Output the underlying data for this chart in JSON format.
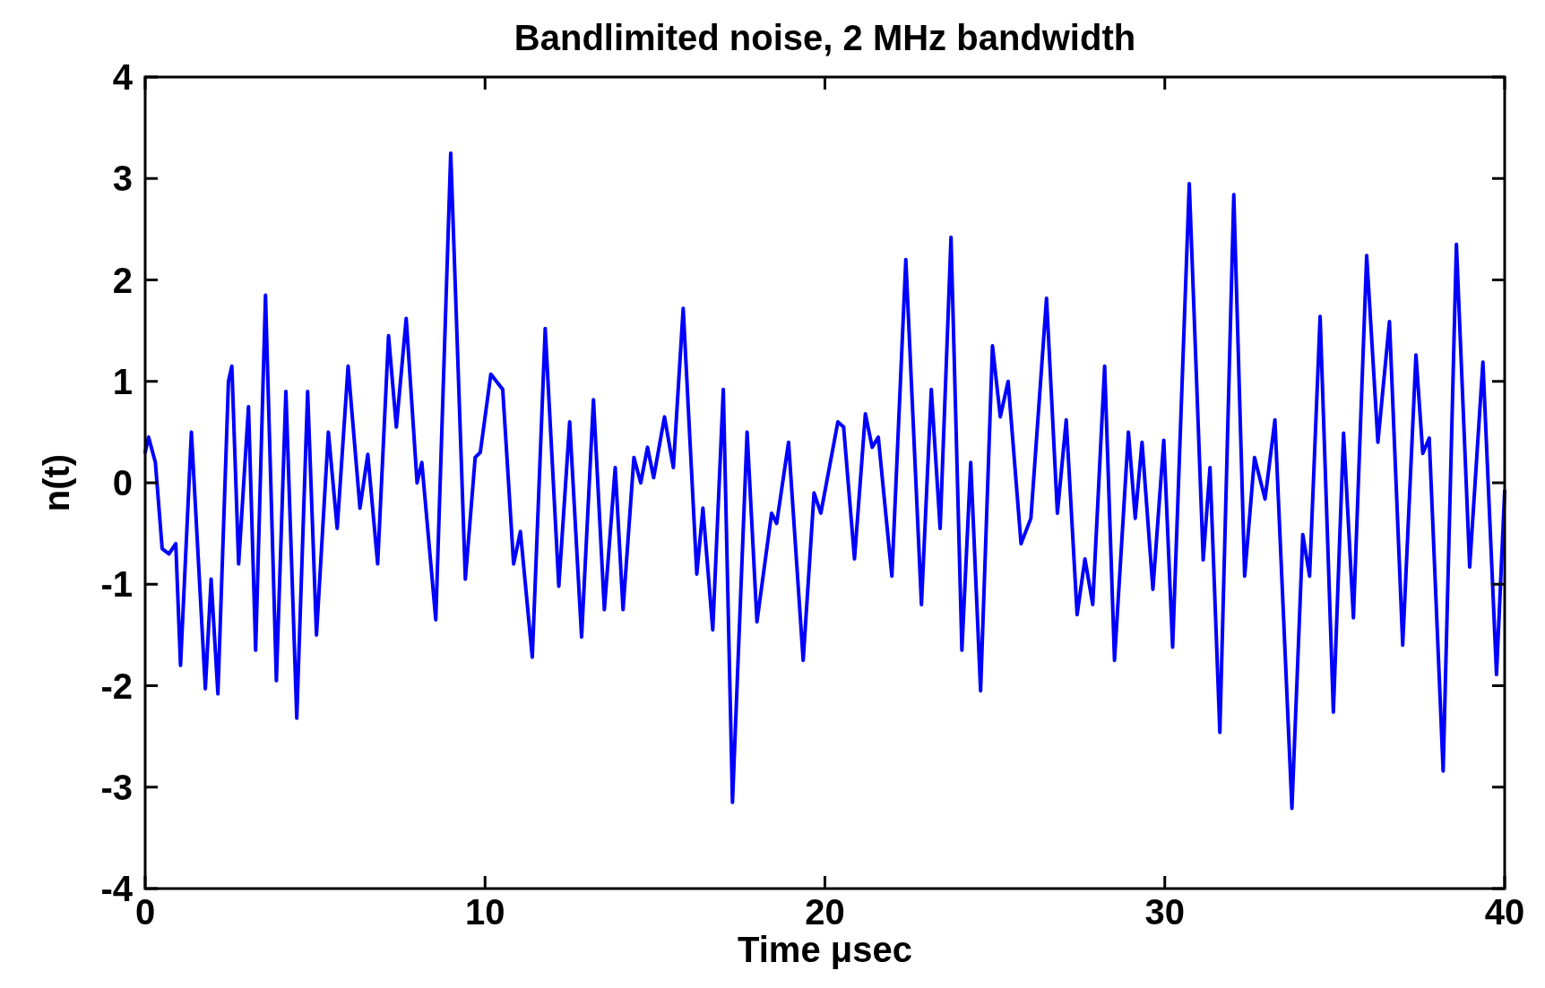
{
  "chart_data": {
    "type": "line",
    "title": "Bandlimited noise, 2 MHz bandwidth",
    "xlabel": "Time μsec",
    "ylabel": "n(t)",
    "xlim": [
      0,
      40
    ],
    "ylim": [
      -4,
      4
    ],
    "xticks": [
      0,
      10,
      20,
      30,
      40
    ],
    "yticks": [
      -4,
      -3,
      -2,
      -1,
      0,
      1,
      2,
      3,
      4
    ],
    "grid": false,
    "line_style": "solid",
    "marker": "none",
    "series": [
      {
        "color": "#0000ff",
        "x": [
          0,
          0.1,
          0.3,
          0.5,
          0.7,
          0.9,
          1.04,
          1.36,
          1.77,
          1.94,
          2.14,
          2.45,
          2.55,
          2.75,
          3.04,
          3.25,
          3.54,
          3.86,
          4.14,
          4.46,
          4.78,
          5.04,
          5.39,
          5.65,
          5.97,
          6.32,
          6.55,
          6.84,
          7.16,
          7.39,
          7.68,
          8.0,
          8.14,
          8.55,
          8.99,
          9.42,
          9.71,
          9.86,
          10.17,
          10.52,
          10.84,
          11.04,
          11.39,
          11.77,
          12.17,
          12.49,
          12.84,
          13.19,
          13.51,
          13.83,
          14.06,
          14.38,
          14.58,
          14.78,
          14.96,
          15.28,
          15.54,
          15.83,
          16.23,
          16.41,
          16.7,
          17.01,
          17.28,
          17.71,
          18.0,
          18.43,
          18.58,
          18.93,
          19.36,
          19.68,
          19.88,
          20.38,
          20.55,
          20.87,
          21.19,
          21.39,
          21.57,
          21.97,
          22.38,
          22.84,
          23.13,
          23.39,
          23.71,
          24.03,
          24.29,
          24.58,
          24.93,
          25.16,
          25.39,
          25.77,
          26.06,
          26.52,
          26.84,
          27.1,
          27.42,
          27.65,
          27.88,
          28.23,
          28.52,
          28.93,
          29.13,
          29.33,
          29.65,
          29.97,
          30.23,
          30.72,
          31.13,
          31.33,
          31.62,
          32.03,
          32.35,
          32.64,
          32.95,
          33.24,
          33.74,
          34.06,
          34.26,
          34.57,
          34.96,
          35.26,
          35.55,
          35.94,
          36.27,
          36.61,
          37.0,
          37.39,
          37.59,
          37.78,
          38.19,
          38.58,
          38.97,
          39.36,
          39.76,
          40.0
        ],
        "values": [
          0.3,
          0.45,
          0.2,
          -0.65,
          -0.7,
          -0.6,
          -1.8,
          0.5,
          -2.03,
          -0.95,
          -2.08,
          1.0,
          1.15,
          -0.8,
          0.75,
          -1.65,
          1.85,
          -1.95,
          0.9,
          -2.32,
          0.9,
          -1.5,
          0.5,
          -0.45,
          1.15,
          -0.25,
          0.28,
          -0.8,
          1.45,
          0.55,
          1.62,
          0.0,
          0.2,
          -1.35,
          3.25,
          -0.95,
          0.25,
          0.3,
          1.07,
          0.92,
          -0.8,
          -0.48,
          -1.72,
          1.52,
          -1.02,
          0.6,
          -1.52,
          0.82,
          -1.25,
          0.15,
          -1.25,
          0.25,
          0.0,
          0.35,
          0.05,
          0.65,
          0.15,
          1.72,
          -0.9,
          -0.25,
          -1.45,
          0.92,
          -3.15,
          0.5,
          -1.37,
          -0.3,
          -0.4,
          0.4,
          -1.75,
          -0.1,
          -0.3,
          0.6,
          0.55,
          -0.75,
          0.68,
          0.35,
          0.45,
          -0.92,
          2.2,
          -1.2,
          0.92,
          -0.45,
          2.42,
          -1.65,
          0.2,
          -2.05,
          1.35,
          0.65,
          1.0,
          -0.6,
          -0.35,
          1.82,
          -0.3,
          0.62,
          -1.3,
          -0.75,
          -1.2,
          1.15,
          -1.75,
          0.5,
          -0.35,
          0.4,
          -1.05,
          0.42,
          -1.62,
          2.95,
          -0.76,
          0.15,
          -2.46,
          2.84,
          -0.92,
          0.25,
          -0.16,
          0.62,
          -3.21,
          -0.51,
          -0.92,
          1.64,
          -2.26,
          0.49,
          -1.33,
          2.24,
          0.4,
          1.59,
          -1.6,
          1.26,
          0.29,
          0.44,
          -2.84,
          2.35,
          -0.83,
          1.19,
          -1.89,
          -0.08
        ]
      }
    ]
  }
}
